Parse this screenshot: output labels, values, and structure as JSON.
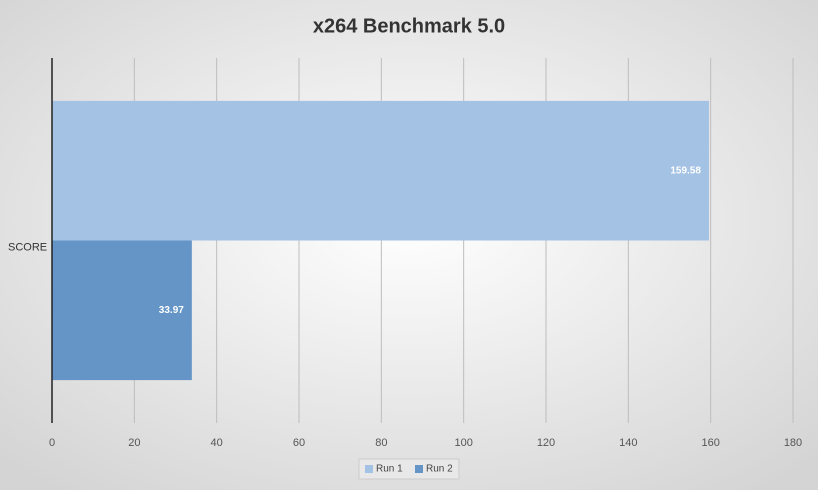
{
  "chart_data": {
    "type": "bar",
    "horizontal": true,
    "title": "x264 Benchmark 5.0",
    "categories": [
      "SCORE"
    ],
    "series": [
      {
        "name": "Run 1",
        "color": "#a4c2e4",
        "values": [
          159.58
        ]
      },
      {
        "name": "Run 2",
        "color": "#6495c6",
        "values": [
          33.97
        ]
      }
    ],
    "xlim": [
      0,
      180
    ],
    "xticks": [
      0,
      20,
      40,
      60,
      80,
      100,
      120,
      140,
      160,
      180
    ],
    "grid": true,
    "legend": "bottom"
  }
}
